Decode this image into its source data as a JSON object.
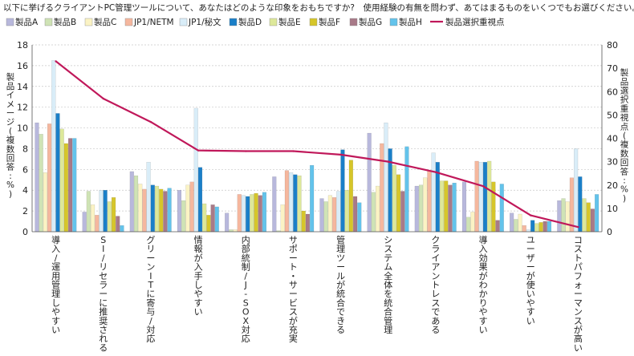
{
  "chart_data": {
    "type": "bar",
    "title": "以下に挙げるクライアントPC管理ツールについて、あなたはどのような印象をおもちですか?　使用経験の有無を問わず、あてはまるものをいくつでもお選びください。",
    "ylabel": "製品イメージ(複数回答:%)",
    "y2label": "製品選択重視点(複数回答:%)",
    "ylim": [
      0,
      18
    ],
    "yticks": [
      0,
      2,
      4,
      6,
      8,
      10,
      12,
      14,
      16,
      18
    ],
    "y2lim": [
      0,
      80
    ],
    "y2ticks": [
      0,
      10,
      20,
      30,
      40,
      50,
      60,
      70,
      80
    ],
    "legend_position": "top",
    "grid": true,
    "categories": [
      "導入/運用管理しやすい",
      "SI/リセラーに推奨される",
      "グリーンITに寄与/対応",
      "情報が入手しやすい",
      "内部統制/J-SOX対応",
      "サポート・サービスが充実",
      "管理ツールが統合できる",
      "システム全体を統合管理",
      "クライアントレスである",
      "導入効果がわかりやすい",
      "ユーザーが使いやすい",
      "コストパフォーマンスが高い"
    ],
    "series": [
      {
        "name": "製品A",
        "color": "#b8b8dc",
        "values": [
          10.5,
          1.9,
          5.8,
          4.0,
          1.8,
          5.3,
          3.2,
          9.5,
          4.4,
          4.8,
          1.8,
          3.0
        ]
      },
      {
        "name": "製品B",
        "color": "#cfe3b5",
        "values": [
          9.4,
          3.9,
          5.4,
          3.0,
          0.2,
          0.1,
          2.9,
          3.8,
          4.5,
          1.4,
          1.2,
          3.2
        ]
      },
      {
        "name": "製品C",
        "color": "#fbf3c4",
        "values": [
          5.7,
          2.6,
          4.6,
          4.5,
          0.2,
          2.6,
          3.5,
          4.4,
          5.2,
          1.9,
          1.7,
          2.9
        ]
      },
      {
        "name": "JP1/NETM",
        "color": "#f5b79e",
        "values": [
          10.4,
          1.6,
          4.1,
          4.8,
          3.6,
          5.9,
          3.3,
          8.5,
          5.9,
          6.8,
          0.6,
          5.2
        ]
      },
      {
        "name": "JP1/秘文",
        "color": "#d9edf8",
        "values": [
          16.5,
          4.0,
          6.7,
          11.9,
          3.5,
          5.7,
          3.9,
          10.5,
          7.6,
          6.7,
          0.2,
          8.0
        ]
      },
      {
        "name": "製品D",
        "color": "#1a7fc8",
        "values": [
          11.4,
          4.0,
          4.5,
          6.2,
          3.4,
          5.5,
          7.9,
          8.0,
          6.7,
          6.7,
          1.1,
          5.3
        ]
      },
      {
        "name": "製品E",
        "color": "#dde89a",
        "values": [
          9.9,
          2.9,
          4.4,
          2.7,
          3.6,
          5.4,
          4.0,
          6.4,
          4.9,
          6.8,
          0.8,
          3.2
        ]
      },
      {
        "name": "製品F",
        "color": "#d6c62a",
        "values": [
          8.5,
          3.3,
          4.1,
          1.6,
          3.7,
          2.0,
          6.9,
          5.5,
          4.9,
          4.8,
          0.9,
          2.8
        ]
      },
      {
        "name": "製品G",
        "color": "#a87a88",
        "values": [
          9.0,
          1.5,
          3.9,
          2.6,
          3.5,
          1.7,
          3.4,
          3.9,
          4.5,
          1.1,
          1.0,
          2.2
        ]
      },
      {
        "name": "製品H",
        "color": "#63c3eb",
        "values": [
          9.0,
          0.6,
          4.2,
          2.4,
          3.8,
          6.4,
          2.8,
          8.2,
          4.7,
          4.6,
          1.0,
          3.6
        ]
      }
    ],
    "line_series": {
      "name": "製品選択重視点",
      "color": "#c0185a",
      "axis": "right",
      "values": [
        73,
        57,
        47,
        34.8,
        34.5,
        34.5,
        33,
        30,
        25.5,
        19.5,
        7,
        2
      ]
    }
  }
}
